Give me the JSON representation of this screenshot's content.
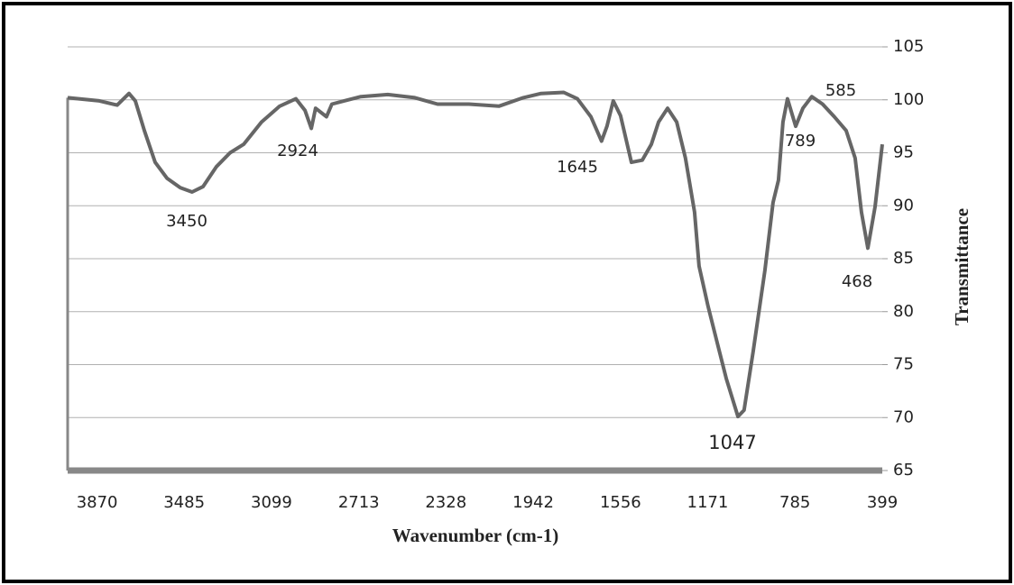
{
  "chart_data": {
    "type": "line",
    "x_label": "Wavenumber (cm-1)",
    "y_label": "Transmittance",
    "xlim": [
      4000,
      399
    ],
    "xticks": [
      3870,
      3485,
      3099,
      2713,
      2328,
      1942,
      1556,
      1171,
      785,
      399
    ],
    "ylim": [
      65,
      105
    ],
    "yticks": [
      65,
      70,
      75,
      80,
      85,
      90,
      95,
      100,
      105
    ],
    "grid": true,
    "series": [
      {
        "color": "#666666",
        "x": [
          4000,
          3860,
          3781,
          3729,
          3701,
          3661,
          3613,
          3561,
          3502,
          3450,
          3402,
          3342,
          3282,
          3222,
          3143,
          3063,
          2991,
          2951,
          2923,
          2904,
          2856,
          2832,
          2704,
          2585,
          2465,
          2365,
          2226,
          2094,
          1986,
          1907,
          1807,
          1747,
          1687,
          1640,
          1616,
          1588,
          1556,
          1508,
          1460,
          1420,
          1388,
          1348,
          1308,
          1269,
          1229,
          1209,
          1169,
          1129,
          1089,
          1037,
          1010,
          970,
          918,
          882,
          858,
          838,
          818,
          782,
          750,
          711,
          663,
          611,
          559,
          519,
          491,
          463,
          431,
          399
        ],
        "values": [
          100.2,
          99.9,
          99.5,
          100.6,
          99.9,
          97.1,
          94.1,
          92.6,
          91.7,
          91.3,
          91.8,
          93.7,
          95,
          95.8,
          97.9,
          99.4,
          100.1,
          99,
          97.3,
          99.2,
          98.4,
          99.6,
          100.3,
          100.5,
          100.2,
          99.6,
          99.6,
          99.4,
          100.2,
          100.6,
          100.7,
          100.1,
          98.4,
          96.1,
          97.5,
          99.9,
          98.5,
          94.1,
          94.3,
          95.8,
          97.9,
          99.2,
          97.9,
          94.5,
          89.4,
          84.3,
          80.5,
          77.1,
          73.7,
          70.1,
          70.7,
          76.2,
          83.9,
          90.3,
          92.4,
          97.9,
          100.1,
          97.5,
          99.2,
          100.3,
          99.6,
          98.4,
          97.1,
          94.5,
          89.4,
          86,
          89.9,
          95.8
        ]
      }
    ],
    "annotations": [
      "3450",
      "2924",
      "1645",
      "1047",
      "789",
      "585",
      "468"
    ]
  }
}
